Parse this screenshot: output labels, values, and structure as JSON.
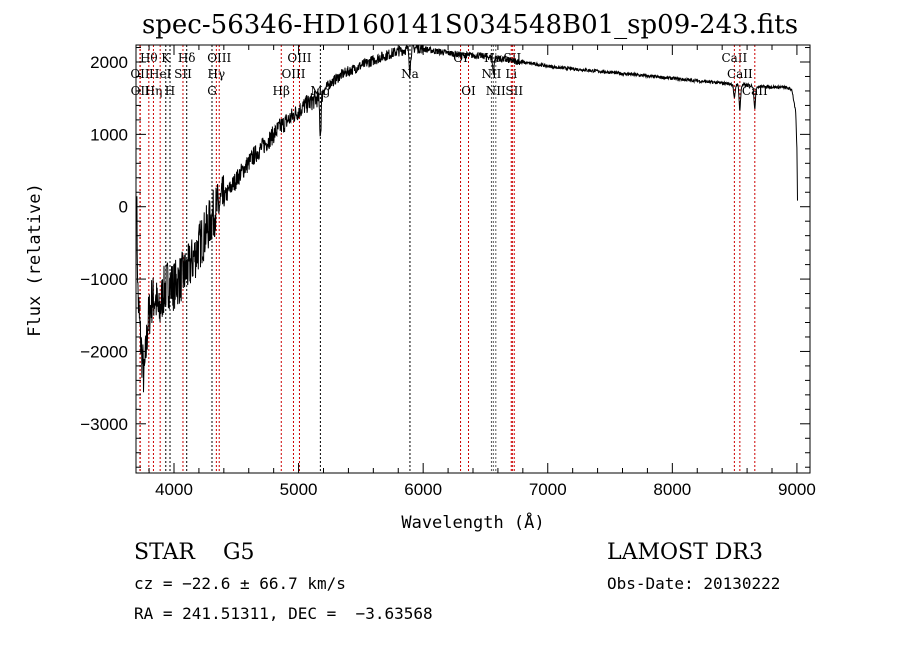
{
  "chart_data": {
    "type": "line",
    "title": "spec-56346-HD160141S034548B01_sp09-243.fits",
    "xlabel": "Wavelength (Å)",
    "ylabel": "Flux (relative)",
    "xlim": [
      3695,
      9105
    ],
    "ylim": [
      -3680,
      2235
    ],
    "xticks": [
      4000,
      5000,
      6000,
      7000,
      8000,
      9000
    ],
    "yticks": [
      -3000,
      -2000,
      -1000,
      0,
      1000,
      2000
    ],
    "grid": false,
    "series": [
      {
        "name": "spectrum",
        "color": "#000000",
        "points": [
          [
            3700,
            200
          ],
          [
            3710,
            -1200
          ],
          [
            3730,
            -1800
          ],
          [
            3760,
            -2400
          ],
          [
            3790,
            -1600
          ],
          [
            3820,
            -1300
          ],
          [
            3850,
            -1250
          ],
          [
            3880,
            -1500
          ],
          [
            3910,
            -1200
          ],
          [
            3950,
            -1050
          ],
          [
            3990,
            -1100
          ],
          [
            4050,
            -1000
          ],
          [
            4120,
            -850
          ],
          [
            4200,
            -550
          ],
          [
            4280,
            -250
          ],
          [
            4330,
            -50
          ],
          [
            4380,
            50
          ],
          [
            4450,
            250
          ],
          [
            4550,
            500
          ],
          [
            4650,
            720
          ],
          [
            4750,
            900
          ],
          [
            4850,
            1100
          ],
          [
            4950,
            1250
          ],
          [
            5050,
            1400
          ],
          [
            5150,
            1500
          ],
          [
            5250,
            1700
          ],
          [
            5350,
            1830
          ],
          [
            5500,
            1950
          ],
          [
            5650,
            2060
          ],
          [
            5800,
            2150
          ],
          [
            5950,
            2200
          ],
          [
            6100,
            2150
          ],
          [
            6300,
            2100
          ],
          [
            6500,
            2080
          ],
          [
            6700,
            2020
          ],
          [
            6900,
            1970
          ],
          [
            7100,
            1920
          ],
          [
            7300,
            1890
          ],
          [
            7600,
            1840
          ],
          [
            7900,
            1790
          ],
          [
            8200,
            1740
          ],
          [
            8450,
            1700
          ],
          [
            8700,
            1660
          ],
          [
            8900,
            1650
          ],
          [
            8960,
            1620
          ],
          [
            8990,
            1300
          ],
          [
            9000,
            800
          ],
          [
            9005,
            100
          ]
        ]
      }
    ],
    "dips": [
      [
        5175,
        -550
      ],
      [
        5894,
        -300
      ],
      [
        6563,
        -200
      ],
      [
        8498,
        -200
      ],
      [
        8542,
        -350
      ],
      [
        8662,
        -300
      ]
    ],
    "lines": [
      {
        "w": 3727,
        "label": "OII",
        "row": 2,
        "color": "#cc0000"
      },
      {
        "w": 3729,
        "label": "OII",
        "row": 3,
        "color": "#cc0000"
      },
      {
        "w": 3798,
        "label": "Hθ",
        "row": 1,
        "color": "#cc0000"
      },
      {
        "w": 3835,
        "label": "Hη",
        "row": 3,
        "color": "#cc0000"
      },
      {
        "w": 3889,
        "label": "HeI",
        "row": 2,
        "color": "#cc0000"
      },
      {
        "w": 3934,
        "label": "K",
        "row": 1,
        "color": "#000000"
      },
      {
        "w": 3968,
        "label": "H",
        "row": 3,
        "color": "#000000"
      },
      {
        "w": 4072,
        "label": "SII",
        "row": 2,
        "color": "#cc0000"
      },
      {
        "w": 4102,
        "label": "Hδ",
        "row": 1,
        "color": "#000000"
      },
      {
        "w": 4305,
        "label": "G",
        "row": 3,
        "color": "#000000"
      },
      {
        "w": 4340,
        "label": "Hγ",
        "row": 2,
        "color": "#cc0000"
      },
      {
        "w": 4363,
        "label": "OIII",
        "row": 1,
        "color": "#cc0000"
      },
      {
        "w": 4861,
        "label": "Hβ",
        "row": 3,
        "color": "#cc0000"
      },
      {
        "w": 4959,
        "label": "OIII",
        "row": 2,
        "color": "#cc0000"
      },
      {
        "w": 5007,
        "label": "OIII",
        "row": 1,
        "color": "#cc0000"
      },
      {
        "w": 5175,
        "label": "Mg",
        "row": 3,
        "color": "#000000"
      },
      {
        "w": 5894,
        "label": "Na",
        "row": 2,
        "color": "#000000"
      },
      {
        "w": 6300,
        "label": "OI",
        "row": 1,
        "color": "#cc0000"
      },
      {
        "w": 6364,
        "label": "OI",
        "row": 3,
        "color": "#cc0000"
      },
      {
        "w": 6548,
        "label": "NII",
        "row": 2,
        "color": "#555555"
      },
      {
        "w": 6563,
        "label": "Hα",
        "row": 1,
        "color": "#555555"
      },
      {
        "w": 6583,
        "label": "NII",
        "row": 3,
        "color": "#555555"
      },
      {
        "w": 6707,
        "label": "Li",
        "row": 2,
        "color": "#cc0000"
      },
      {
        "w": 6716,
        "label": "SII",
        "row": 1,
        "color": "#cc0000"
      },
      {
        "w": 6731,
        "label": "SII",
        "row": 3,
        "color": "#cc0000"
      },
      {
        "w": 8498,
        "label": "CaII",
        "row": 1,
        "color": "#cc0000"
      },
      {
        "w": 8542,
        "label": "CaII",
        "row": 2,
        "color": "#cc0000"
      },
      {
        "w": 8662,
        "label": "CaII",
        "row": 3,
        "color": "#cc0000"
      }
    ]
  },
  "info": {
    "class": "STAR    G5",
    "cz": "cz = −22.6 ± 66.7 km/s",
    "radec": "RA = 241.51311, DEC =  −3.63568",
    "survey": "LAMOST DR3",
    "obsdate": "Obs-Date: 20130222"
  }
}
